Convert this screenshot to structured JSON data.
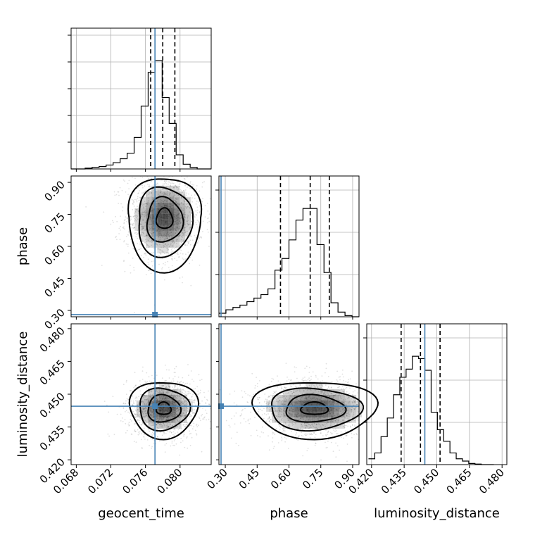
{
  "chart_data": {
    "type": "corner",
    "truth_color": "#4682b4",
    "parameters": [
      {
        "name": "geocent_time",
        "range": [
          0.0674,
          0.0836
        ],
        "ticks": [
          "0.068",
          "0.072",
          "0.076",
          "0.080"
        ],
        "truth": 0.0771,
        "quantiles": [
          0.0766,
          0.078,
          0.0794
        ],
        "hist": {
          "edges_start": 0.0674,
          "bin_width": 0.00081,
          "values": [
            0,
            0,
            1,
            2,
            3,
            5,
            8,
            13,
            20,
            40,
            80,
            123,
            138,
            91,
            58,
            18,
            6,
            2,
            0,
            0
          ]
        }
      },
      {
        "name": "phase",
        "range": [
          0.27,
          0.93
        ],
        "ticks": [
          "0.30",
          "0.45",
          "0.60",
          "0.75",
          "0.90"
        ],
        "truth": 0.28,
        "quantiles": [
          0.56,
          0.7,
          0.79
        ],
        "hist": {
          "edges_start": 0.27,
          "bin_width": 0.033,
          "values": [
            3,
            6,
            8,
            10,
            13,
            16,
            19,
            24,
            40,
            50,
            66,
            83,
            93,
            93,
            62,
            38,
            12,
            4,
            1,
            0
          ]
        }
      },
      {
        "name": "luminosity_distance",
        "range": [
          0.4178,
          0.4822
        ],
        "ticks": [
          "0.420",
          "0.435",
          "0.450",
          "0.465",
          "0.480"
        ],
        "truth": 0.4445,
        "quantiles": [
          0.4336,
          0.4425,
          0.4515
        ],
        "hist": {
          "edges_start": 0.4186,
          "bin_width": 0.00288,
          "values": [
            5,
            10,
            24,
            40,
            60,
            75,
            82,
            93,
            91,
            81,
            45,
            30,
            20,
            10,
            5,
            3,
            1,
            0.5,
            0,
            0
          ]
        }
      }
    ],
    "pairs": [
      {
        "x": "geocent_time",
        "y": "phase",
        "center": [
          0.0782,
          0.735
        ],
        "spread": [
          0.0018,
          0.085
        ]
      },
      {
        "x": "geocent_time",
        "y": "luminosity_distance",
        "center": [
          0.0781,
          0.4435
        ],
        "spread": [
          0.0017,
          0.0055
        ]
      },
      {
        "x": "phase",
        "y": "luminosity_distance",
        "center": [
          0.72,
          0.4435
        ],
        "spread": [
          0.12,
          0.0055
        ]
      }
    ]
  }
}
